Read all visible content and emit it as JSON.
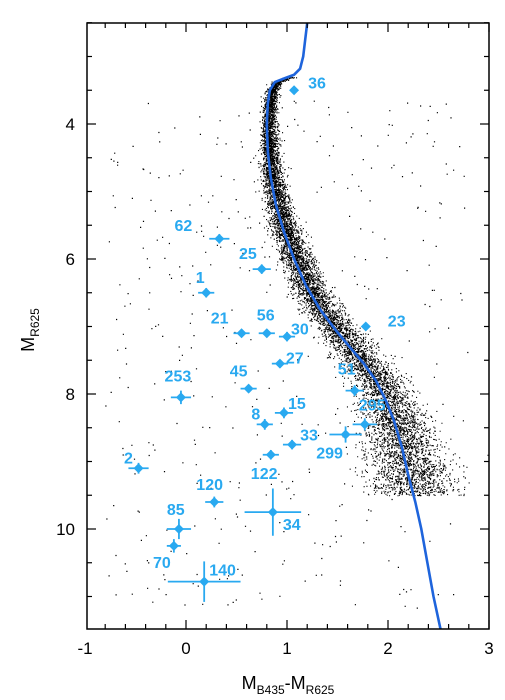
{
  "chart_data": {
    "type": "scatter",
    "xlim": [
      -1,
      3
    ],
    "ylim": [
      11.5,
      2.5
    ],
    "y_inverted": true,
    "x_ticks": [
      -1,
      0,
      1,
      2,
      3
    ],
    "x_tick_labels": [
      "-1",
      "0",
      "1",
      "2",
      "3"
    ],
    "y_ticks": [
      4,
      6,
      8,
      10
    ],
    "y_tick_labels": [
      "4",
      "6",
      "8",
      "10"
    ],
    "xlabel": {
      "m1": "M",
      "s1": "B435",
      "sep": "-",
      "m2": "M",
      "s2": "R625"
    },
    "ylabel": {
      "m": "M",
      "s": "R625"
    },
    "grid": false,
    "colors": {
      "isochrone": "#1e64dc",
      "labeled_points": "#29a9f0",
      "field_points": "#000000"
    },
    "isochrone": [
      [
        1.2,
        2.5
      ],
      [
        1.18,
        2.75
      ],
      [
        1.16,
        3.0
      ],
      [
        1.13,
        3.18
      ],
      [
        1.07,
        3.27
      ],
      [
        0.98,
        3.32
      ],
      [
        0.88,
        3.38
      ],
      [
        0.83,
        3.5
      ],
      [
        0.81,
        3.7
      ],
      [
        0.8,
        4.0
      ],
      [
        0.81,
        4.4
      ],
      [
        0.84,
        4.8
      ],
      [
        0.89,
        5.2
      ],
      [
        0.97,
        5.6
      ],
      [
        1.07,
        6.0
      ],
      [
        1.19,
        6.4
      ],
      [
        1.33,
        6.75
      ],
      [
        1.48,
        7.05
      ],
      [
        1.62,
        7.3
      ],
      [
        1.76,
        7.55
      ],
      [
        1.88,
        7.8
      ],
      [
        1.98,
        8.1
      ],
      [
        2.06,
        8.4
      ],
      [
        2.14,
        8.8
      ],
      [
        2.2,
        9.2
      ],
      [
        2.27,
        9.6
      ],
      [
        2.33,
        10.0
      ],
      [
        2.39,
        10.5
      ],
      [
        2.45,
        11.0
      ],
      [
        2.52,
        11.5
      ]
    ],
    "series": [
      {
        "points": [
          {
            "label": "36",
            "x": 1.07,
            "y": 3.5,
            "xerr": 0.02,
            "yerr": 0.03
          },
          {
            "label": "62",
            "x": 0.33,
            "y": 5.7,
            "xerr": 0.1,
            "yerr": 0.07
          },
          {
            "label": "25",
            "x": 0.75,
            "y": 6.15,
            "xerr": 0.09,
            "yerr": 0.07
          },
          {
            "label": "1",
            "x": 0.2,
            "y": 6.5,
            "xerr": 0.08,
            "yerr": 0.07
          },
          {
            "label": "23",
            "x": 1.78,
            "y": 7.0,
            "xerr": 0.03,
            "yerr": 0.03
          },
          {
            "label": "21",
            "x": 0.55,
            "y": 7.1,
            "xerr": 0.08,
            "yerr": 0.06
          },
          {
            "label": "56",
            "x": 0.8,
            "y": 7.1,
            "xerr": 0.08,
            "yerr": 0.06
          },
          {
            "label": "30",
            "x": 1.0,
            "y": 7.15,
            "xerr": 0.08,
            "yerr": 0.07
          },
          {
            "label": "27",
            "x": 0.93,
            "y": 7.55,
            "xerr": 0.08,
            "yerr": 0.06
          },
          {
            "label": "45",
            "x": 0.62,
            "y": 7.92,
            "xerr": 0.08,
            "yerr": 0.06
          },
          {
            "label": "51",
            "x": 1.67,
            "y": 7.95,
            "xerr": 0.09,
            "yerr": 0.08
          },
          {
            "label": "253",
            "x": -0.05,
            "y": 8.05,
            "xerr": 0.1,
            "yerr": 0.1
          },
          {
            "label": "15",
            "x": 0.97,
            "y": 8.28,
            "xerr": 0.09,
            "yerr": 0.08
          },
          {
            "label": "295",
            "x": 1.77,
            "y": 8.45,
            "xerr": 0.12,
            "yerr": 0.09
          },
          {
            "label": "8",
            "x": 0.78,
            "y": 8.45,
            "xerr": 0.08,
            "yerr": 0.08
          },
          {
            "label": "299",
            "x": 1.58,
            "y": 8.6,
            "xerr": 0.16,
            "yerr": 0.12
          },
          {
            "label": "33",
            "x": 1.05,
            "y": 8.75,
            "xerr": 0.09,
            "yerr": 0.07
          },
          {
            "label": "122",
            "x": 0.84,
            "y": 8.9,
            "xerr": 0.08,
            "yerr": 0.07
          },
          {
            "label": "2",
            "x": -0.47,
            "y": 9.1,
            "xerr": 0.1,
            "yerr": 0.08
          },
          {
            "label": "120",
            "x": 0.28,
            "y": 9.6,
            "xerr": 0.09,
            "yerr": 0.08
          },
          {
            "label": "34",
            "x": 0.86,
            "y": 9.75,
            "xerr": 0.28,
            "yerr": 0.35
          },
          {
            "label": "85",
            "x": -0.07,
            "y": 10.0,
            "xerr": 0.12,
            "yerr": 0.15
          },
          {
            "label": "70",
            "x": -0.12,
            "y": 10.25,
            "xerr": 0.07,
            "yerr": 0.1
          },
          {
            "label": "140",
            "x": 0.18,
            "y": 10.78,
            "xerr": 0.36,
            "yerr": 0.3
          }
        ]
      }
    ]
  }
}
